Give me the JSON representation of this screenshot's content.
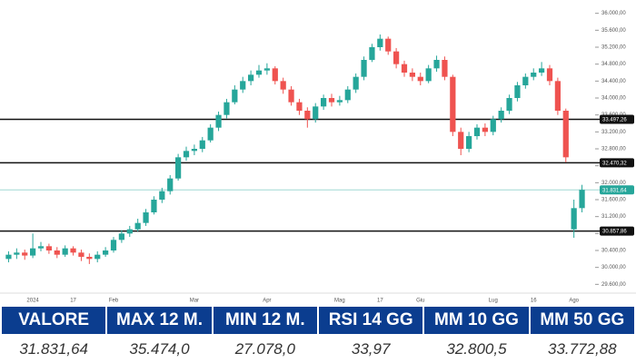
{
  "chart_data": {
    "type": "candlestick",
    "categories": [
      null,
      null,
      null,
      "2024",
      null,
      null,
      null,
      null,
      "17",
      null,
      null,
      null,
      null,
      "Feb",
      null,
      null,
      null,
      null,
      null,
      null,
      null,
      null,
      null,
      "Mar",
      null,
      null,
      null,
      null,
      null,
      null,
      null,
      null,
      "Apr",
      null,
      null,
      null,
      null,
      null,
      null,
      null,
      null,
      "Mag",
      null,
      null,
      null,
      null,
      "17",
      null,
      null,
      null,
      null,
      "Giu",
      null,
      null,
      null,
      null,
      null,
      null,
      null,
      null,
      "Lug",
      null,
      null,
      null,
      null,
      "16",
      null,
      null,
      null,
      null,
      "Ago",
      null
    ],
    "open": [
      30200,
      30300,
      30350,
      30280,
      30450,
      30500,
      30400,
      30300,
      30450,
      30350,
      30250,
      30200,
      30300,
      30400,
      30650,
      30800,
      30900,
      31050,
      31300,
      31600,
      31800,
      32100,
      32600,
      32750,
      32800,
      33000,
      33300,
      33600,
      33900,
      34200,
      34400,
      34550,
      34650,
      34700,
      34400,
      34200,
      33900,
      33700,
      33500,
      33800,
      34000,
      33900,
      33950,
      34200,
      34500,
      34900,
      35200,
      35400,
      35100,
      34800,
      34600,
      34500,
      34400,
      34700,
      34900,
      34500,
      33200,
      32800,
      33100,
      33300,
      33200,
      33500,
      33700,
      34000,
      34300,
      34500,
      34600,
      34700,
      34400,
      33700,
      30900,
      31400
    ],
    "high": [
      30380,
      30450,
      30420,
      30800,
      30600,
      30560,
      30480,
      30520,
      30500,
      30420,
      30330,
      30380,
      30480,
      30720,
      30880,
      30980,
      31150,
      31380,
      31680,
      31880,
      32180,
      32680,
      32850,
      32900,
      33080,
      33380,
      33680,
      33980,
      34300,
      34500,
      34650,
      34780,
      34820,
      34750,
      34480,
      34280,
      33980,
      33780,
      33880,
      34080,
      34100,
      34050,
      34280,
      34580,
      34980,
      35280,
      35500,
      35450,
      35180,
      34880,
      34700,
      34600,
      34780,
      35000,
      34980,
      34550,
      33300,
      33200,
      33380,
      33400,
      33580,
      33780,
      34080,
      34380,
      34580,
      34700,
      34850,
      34780,
      34480,
      33750,
      31600,
      31950
    ],
    "low": [
      30120,
      30200,
      30180,
      30220,
      30380,
      30320,
      30220,
      30250,
      30280,
      30150,
      30080,
      30120,
      30250,
      30350,
      30580,
      30720,
      30850,
      30980,
      31250,
      31520,
      31720,
      32050,
      32520,
      32650,
      32720,
      32950,
      33220,
      33520,
      33850,
      34120,
      34300,
      34480,
      34550,
      34320,
      34100,
      33820,
      33600,
      33300,
      33420,
      33720,
      33800,
      33820,
      33880,
      34120,
      34420,
      34850,
      35120,
      35020,
      34700,
      34500,
      34400,
      34300,
      34350,
      34620,
      34420,
      33100,
      32650,
      32720,
      33020,
      33100,
      33120,
      33420,
      33620,
      33920,
      34220,
      34420,
      34520,
      34300,
      33600,
      32480,
      30700,
      31300
    ],
    "close": [
      30300,
      30350,
      30280,
      30450,
      30500,
      30400,
      30300,
      30450,
      30350,
      30250,
      30200,
      30300,
      30400,
      30650,
      30800,
      30900,
      31050,
      31300,
      31600,
      31800,
      32100,
      32600,
      32750,
      32800,
      33000,
      33300,
      33600,
      33900,
      34200,
      34400,
      34550,
      34650,
      34700,
      34400,
      34200,
      33900,
      33700,
      33500,
      33800,
      34000,
      33900,
      33950,
      34200,
      34500,
      34900,
      35200,
      35400,
      35100,
      34800,
      34600,
      34500,
      34400,
      34700,
      34900,
      34500,
      33200,
      32800,
      33100,
      33300,
      33200,
      33500,
      33700,
      34000,
      34300,
      34500,
      34600,
      34700,
      34400,
      33700,
      32600,
      31400,
      31832
    ],
    "up_color": "#26a69a",
    "down_color": "#ef5350",
    "ylim": [
      29500,
      36100
    ],
    "yticks": [
      {
        "value": 29600,
        "label": "29.600,00"
      },
      {
        "value": 30000,
        "label": "30.000,00"
      },
      {
        "value": 30400,
        "label": "30.400,00"
      },
      {
        "value": 30800,
        "label": "30.800,00"
      },
      {
        "value": 31200,
        "label": "31.200,00"
      },
      {
        "value": 31600,
        "label": "31.600,00"
      },
      {
        "value": 32000,
        "label": "32.000,00"
      },
      {
        "value": 32400,
        "label": "32.400,00"
      },
      {
        "value": 32800,
        "label": "32.800,00"
      },
      {
        "value": 33200,
        "label": "33.200,00"
      },
      {
        "value": 33600,
        "label": "33.600,00"
      },
      {
        "value": 34000,
        "label": "34.000,00"
      },
      {
        "value": 34400,
        "label": "34.400,00"
      },
      {
        "value": 34800,
        "label": "34.800,00"
      },
      {
        "value": 35200,
        "label": "35.200,00"
      },
      {
        "value": 35600,
        "label": "35.600,00"
      },
      {
        "value": 36000,
        "label": "36.000,00"
      }
    ],
    "levels": [
      {
        "value": 33497.26,
        "label": "33.497,26",
        "color": "#111111"
      },
      {
        "value": 32470.32,
        "label": "32.470,32",
        "color": "#111111"
      },
      {
        "value": 31831.64,
        "label": "31.831,64",
        "color": "#26a69a"
      },
      {
        "value": 30857.86,
        "label": "30.857,86",
        "color": "#111111"
      }
    ]
  },
  "table": {
    "headers": [
      "VALORE",
      "MAX 12 M.",
      "MIN 12 M.",
      "RSI 14 GG",
      "MM 10 GG",
      "MM 50 GG"
    ],
    "values": [
      "31.831,64",
      "35.474,0",
      "27.078,0",
      "33,97",
      "32.800,5",
      "33.772,88"
    ]
  }
}
